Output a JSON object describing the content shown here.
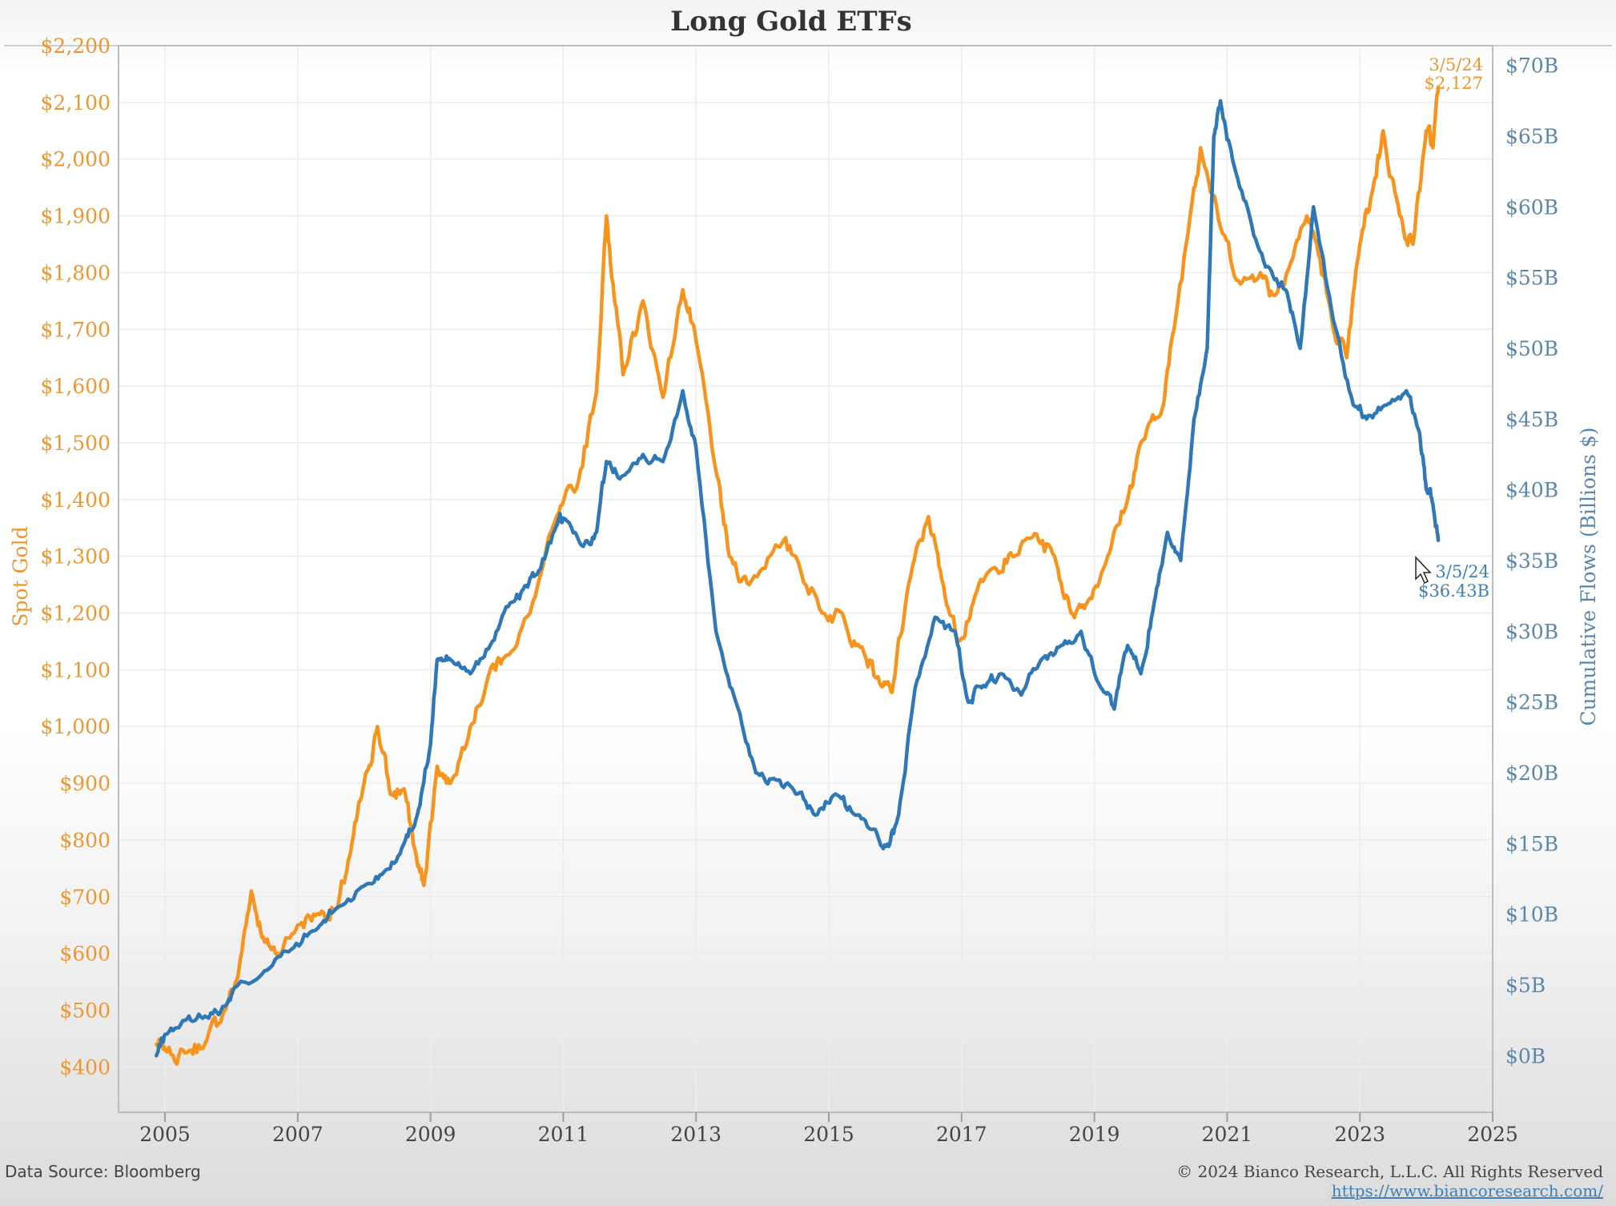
{
  "chart_data": {
    "type": "line",
    "title": "Long Gold ETFs",
    "ylabel_left": "Spot Gold",
    "ylabel_right": "Cumulative Flows (Billions $)",
    "xlabel": "",
    "xlim": [
      2004.3,
      2025
    ],
    "ylim_left": [
      320,
      2200
    ],
    "ylim_right": [
      -4,
      71.4
    ],
    "x_ticks": [
      "2005",
      "2007",
      "2009",
      "2011",
      "2013",
      "2015",
      "2017",
      "2019",
      "2021",
      "2023",
      "2025"
    ],
    "y_ticks_left": [
      "$400",
      "$500",
      "$600",
      "$700",
      "$800",
      "$900",
      "$1,000",
      "$1,100",
      "$1,200",
      "$1,300",
      "$1,400",
      "$1,500",
      "$1,600",
      "$1,700",
      "$1,800",
      "$1,900",
      "$2,000",
      "$2,100",
      "$2,200"
    ],
    "y_ticks_right": [
      "$0B",
      "$5B",
      "$10B",
      "$15B",
      "$20B",
      "$25B",
      "$30B",
      "$35B",
      "$40B",
      "$45B",
      "$50B",
      "$55B",
      "$60B",
      "$65B",
      "$70B"
    ],
    "grid": true,
    "colors": {
      "gold": "#f7941d",
      "flows": "#2e78b7"
    },
    "series": [
      {
        "name": "Spot Gold",
        "axis": "left",
        "x": [
          2004.87,
          2005.0,
          2005.3,
          2005.6,
          2005.9,
          2006.1,
          2006.3,
          2006.5,
          2006.7,
          2007.0,
          2007.3,
          2007.6,
          2007.8,
          2008.0,
          2008.2,
          2008.4,
          2008.6,
          2008.8,
          2008.9,
          2009.1,
          2009.3,
          2009.6,
          2009.9,
          2010.1,
          2010.5,
          2010.9,
          2011.2,
          2011.5,
          2011.65,
          2011.75,
          2011.9,
          2012.2,
          2012.5,
          2012.8,
          2013.0,
          2013.3,
          2013.5,
          2013.8,
          2014.2,
          2014.5,
          2014.9,
          2015.2,
          2015.5,
          2015.8,
          2015.95,
          2016.2,
          2016.5,
          2016.7,
          2016.95,
          2017.2,
          2017.5,
          2017.8,
          2018.1,
          2018.4,
          2018.65,
          2018.9,
          2019.2,
          2019.5,
          2019.7,
          2020.0,
          2020.2,
          2020.5,
          2020.6,
          2020.9,
          2021.2,
          2021.5,
          2021.7,
          2021.9,
          2022.2,
          2022.35,
          2022.6,
          2022.8,
          2023.0,
          2023.2,
          2023.35,
          2023.6,
          2023.8,
          2024.0,
          2024.1,
          2024.18
        ],
        "values": [
          440,
          430,
          425,
          440,
          500,
          560,
          710,
          620,
          600,
          650,
          670,
          680,
          780,
          900,
          1000,
          880,
          890,
          760,
          720,
          930,
          900,
          1000,
          1100,
          1120,
          1200,
          1370,
          1420,
          1590,
          1900,
          1780,
          1620,
          1750,
          1580,
          1770,
          1680,
          1450,
          1300,
          1250,
          1320,
          1300,
          1200,
          1200,
          1140,
          1070,
          1060,
          1250,
          1370,
          1260,
          1150,
          1230,
          1280,
          1300,
          1340,
          1300,
          1200,
          1220,
          1300,
          1400,
          1500,
          1550,
          1700,
          1950,
          2020,
          1880,
          1780,
          1800,
          1760,
          1800,
          1900,
          1850,
          1700,
          1650,
          1850,
          1950,
          2050,
          1900,
          1850,
          2050,
          2020,
          2127
        ]
      },
      {
        "name": "Cumulative Flows",
        "axis": "right",
        "x": [
          2004.87,
          2005.0,
          2005.3,
          2005.6,
          2005.9,
          2006.1,
          2006.5,
          2006.9,
          2007.3,
          2007.6,
          2008.0,
          2008.3,
          2008.6,
          2008.8,
          2009.0,
          2009.1,
          2009.3,
          2009.6,
          2009.9,
          2010.2,
          2010.4,
          2010.6,
          2010.9,
          2011.0,
          2011.3,
          2011.5,
          2011.65,
          2011.9,
          2012.2,
          2012.5,
          2012.8,
          2013.0,
          2013.3,
          2013.6,
          2013.9,
          2014.2,
          2014.5,
          2014.8,
          2015.1,
          2015.4,
          2015.7,
          2015.9,
          2016.05,
          2016.3,
          2016.6,
          2016.9,
          2017.1,
          2017.3,
          2017.6,
          2017.9,
          2018.2,
          2018.5,
          2018.8,
          2019.1,
          2019.3,
          2019.5,
          2019.7,
          2019.9,
          2020.1,
          2020.3,
          2020.5,
          2020.7,
          2020.8,
          2020.9,
          2021.1,
          2021.4,
          2021.7,
          2021.9,
          2022.1,
          2022.3,
          2022.6,
          2022.9,
          2023.1,
          2023.4,
          2023.7,
          2023.9,
          2024.0,
          2024.1,
          2024.18
        ],
        "values": [
          0,
          1.5,
          2.5,
          2.8,
          3.5,
          5,
          6,
          7.5,
          9,
          10.5,
          12,
          13,
          15,
          17,
          22,
          28,
          28,
          27,
          29,
          32,
          33,
          34,
          37.5,
          38,
          36,
          37,
          42,
          41,
          42.5,
          42,
          47,
          43,
          30,
          25,
          20,
          19.5,
          18.5,
          17,
          18.5,
          17,
          16,
          14.8,
          17,
          26,
          31,
          30,
          25,
          26,
          27,
          25.5,
          28,
          29,
          30,
          26,
          24.5,
          29,
          27,
          32,
          37,
          35,
          45,
          50,
          65,
          67.5,
          63,
          58,
          55,
          54,
          50,
          60,
          52,
          46,
          45,
          46,
          47,
          44,
          40,
          39,
          36.43
        ]
      }
    ],
    "annotations": [
      {
        "series": "Spot Gold",
        "date": "3/5/24",
        "value": "$2,127"
      },
      {
        "series": "Cumulative Flows",
        "date": "3/5/24",
        "value": "$36.43B"
      }
    ]
  },
  "footer": {
    "source": "Data Source: Bloomberg",
    "copyright": "© 2024  Bianco Research, L.L.C. All Rights Reserved",
    "url": "https://www.biancoresearch.com/"
  }
}
